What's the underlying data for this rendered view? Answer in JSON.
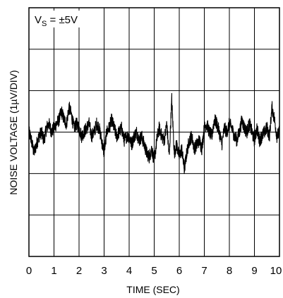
{
  "chart_data": {
    "type": "line",
    "title": "",
    "xlabel": "TIME (SEC)",
    "ylabel": "NOISE VOLTAGE (1µV/DIV)",
    "annotation": {
      "main": "V",
      "sub": "S",
      "rest": " = ±5V"
    },
    "x_ticks": [
      "0",
      "1",
      "2",
      "3",
      "4",
      "5",
      "6",
      "7",
      "8",
      "9",
      "10"
    ],
    "xlim": [
      0,
      10
    ],
    "ylim_div": [
      -3,
      3
    ],
    "grid": true,
    "series": [
      {
        "x": [
          0,
          0.1,
          0.2,
          0.3,
          0.4,
          0.5,
          0.6,
          0.7,
          0.8,
          0.9,
          1.0,
          1.1,
          1.2,
          1.3,
          1.4,
          1.5,
          1.6,
          1.7,
          1.8,
          1.9,
          2.0,
          2.1,
          2.2,
          2.3,
          2.4,
          2.5,
          2.6,
          2.7,
          2.8,
          2.9,
          3.0,
          3.1,
          3.2,
          3.3,
          3.4,
          3.5,
          3.6,
          3.7,
          3.8,
          3.9,
          4.0,
          4.1,
          4.2,
          4.3,
          4.4,
          4.5,
          4.6,
          4.7,
          4.8,
          4.9,
          5.0,
          5.1,
          5.2,
          5.3,
          5.4,
          5.5,
          5.6,
          5.7,
          5.8,
          5.9,
          6.0,
          6.1,
          6.2,
          6.3,
          6.4,
          6.5,
          6.6,
          6.7,
          6.8,
          6.9,
          7.0,
          7.1,
          7.2,
          7.3,
          7.4,
          7.5,
          7.6,
          7.7,
          7.8,
          7.9,
          8.0,
          8.1,
          8.2,
          8.3,
          8.4,
          8.5,
          8.6,
          8.7,
          8.8,
          8.9,
          9.0,
          9.1,
          9.2,
          9.3,
          9.4,
          9.5,
          9.6,
          9.7,
          9.8,
          9.9,
          10.0
        ],
        "y": [
          0.0,
          -0.2,
          -0.5,
          -0.3,
          -0.1,
          0.0,
          -0.2,
          0.1,
          0.2,
          0.0,
          0.1,
          0.2,
          0.3,
          0.5,
          0.3,
          0.2,
          0.6,
          0.4,
          0.1,
          0.2,
          0.1,
          -0.1,
          0.0,
          0.1,
          0.2,
          -0.1,
          0.0,
          0.2,
          0.1,
          -0.2,
          -0.5,
          0.0,
          0.1,
          0.3,
          0.1,
          -0.1,
          0.0,
          0.1,
          -0.2,
          -0.1,
          -0.1,
          -0.3,
          -0.1,
          0.0,
          -0.2,
          -0.1,
          -0.3,
          -0.5,
          -0.6,
          -0.4,
          -0.7,
          -0.2,
          0.1,
          -0.1,
          -0.2,
          0.2,
          -0.6,
          0.8,
          -0.5,
          -0.3,
          -0.6,
          -0.4,
          -0.9,
          -0.5,
          -0.2,
          -0.1,
          -0.4,
          -0.3,
          -0.2,
          -0.4,
          0.1,
          0.2,
          0.0,
          -0.1,
          0.3,
          0.2,
          0.0,
          -0.3,
          0.1,
          0.0,
          0.2,
          0.1,
          -0.1,
          -0.2,
          0.0,
          0.3,
          0.1,
          0.0,
          0.2,
          0.0,
          -0.2,
          0.1,
          -0.2,
          -0.1,
          0.0,
          0.1,
          -0.1,
          0.6,
          0.3,
          -0.1,
          0.0
        ]
      }
    ]
  },
  "colors": {
    "background": "#ffffff",
    "ink": "#000000"
  }
}
